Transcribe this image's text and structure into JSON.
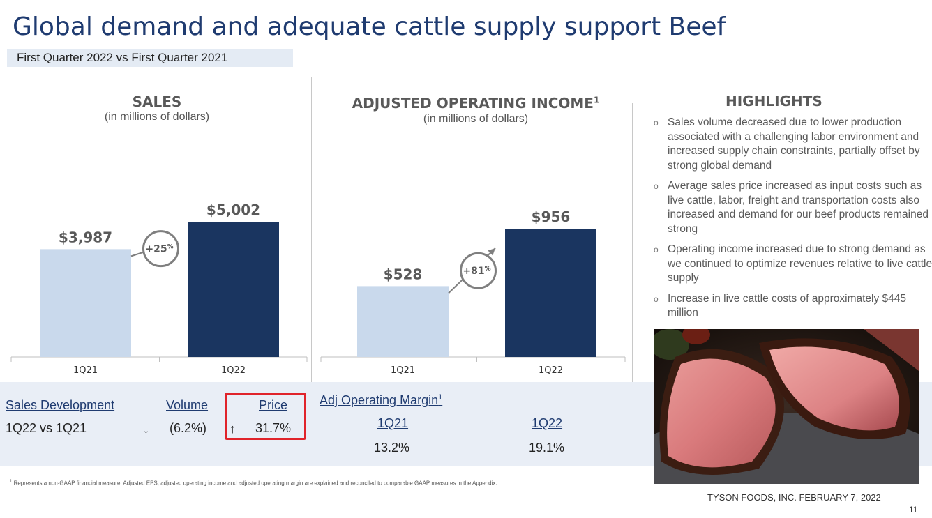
{
  "header": {
    "title": "Global demand and adequate cattle supply support Beef",
    "subtitle": "First Quarter 2022 vs First Quarter 2021"
  },
  "chart_data": [
    {
      "type": "bar",
      "title": "SALES",
      "subtitle": "(in millions of dollars)",
      "categories": [
        "1Q21",
        "1Q22"
      ],
      "values": [
        3987,
        5002
      ],
      "data_labels": [
        "$3,987",
        "$5,002"
      ],
      "growth_label": "+25",
      "growth_unit": "%",
      "colors": [
        "#c9d9ec",
        "#1a3560"
      ]
    },
    {
      "type": "bar",
      "title": "ADJUSTED OPERATING INCOME",
      "title_superscript": "1",
      "subtitle": "(in millions of dollars)",
      "categories": [
        "1Q21",
        "1Q22"
      ],
      "values": [
        528,
        956
      ],
      "data_labels": [
        "$528",
        "$956"
      ],
      "growth_label": "+81",
      "growth_unit": "%",
      "colors": [
        "#c9d9ec",
        "#1a3560"
      ]
    }
  ],
  "highlights": {
    "title": "HIGHLIGHTS",
    "bullet": "o",
    "items": [
      "Sales volume decreased due to lower production associated with a challenging labor environment and increased supply chain constraints, partially offset by strong global demand",
      "Average sales price increased as input costs such as live cattle, labor, freight and transportation costs also increased and demand for our beef products remained strong",
      "Operating income increased due to strong demand as we continued to optimize revenues relative to live cattle supply",
      "Increase in live cattle costs of approximately $445 million"
    ]
  },
  "sales_development": {
    "header": "Sales Development",
    "row_label": "1Q22 vs 1Q21",
    "volume_header": "Volume",
    "volume_arrow": "↓",
    "volume_value": "(6.2%)",
    "price_header": "Price",
    "price_arrow": "↑",
    "price_value": "31.7%"
  },
  "adj_margin": {
    "header": "Adj Operating Margin",
    "superscript": "1",
    "col1_header": "1Q21",
    "col1_value": "13.2%",
    "col2_header": "1Q22",
    "col2_value": "19.1%"
  },
  "footer": {
    "footnote_mark": "1",
    "footnote": "Represents a non-GAAP financial measure. Adjusted EPS, adjusted operating income and adjusted operating margin are explained and reconciled to comparable GAAP measures in the Appendix.",
    "company": "TYSON FOODS, INC. FEBRUARY 7, 2022",
    "page": "11"
  },
  "colors": {
    "title": "#1f3b70",
    "light_bar": "#c9d9ec",
    "dark_bar": "#1a3560",
    "band": "#e9eef6",
    "highlight_box": "#e0232a"
  }
}
